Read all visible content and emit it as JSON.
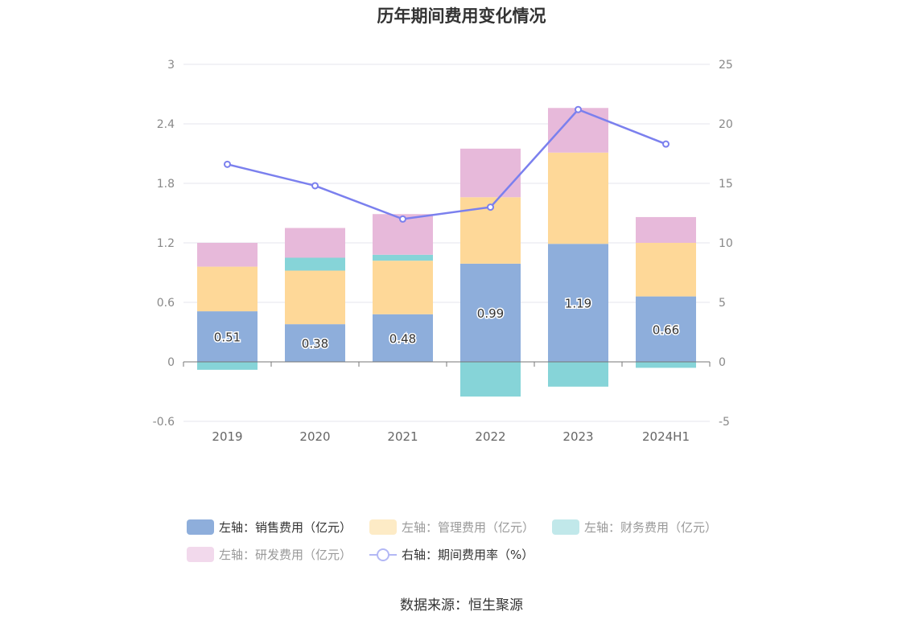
{
  "title": "历年期间费用变化情况",
  "source": "数据来源：恒生聚源",
  "legend": [
    {
      "label": "左轴：销售费用（亿元）",
      "color": "#8eaedb",
      "dim": false
    },
    {
      "label": "左轴：管理费用（亿元）",
      "color": "#fdebc6",
      "dim": true
    },
    {
      "label": "左轴：财务费用（亿元）",
      "color": "#c1e8ea",
      "dim": true
    },
    {
      "label": "左轴：研发费用（亿元）",
      "color": "#f2d9ec",
      "dim": true
    },
    {
      "label": "右轴：期间费用率（%）",
      "color": "#b3b8f5",
      "dim": false
    }
  ],
  "chart_data": {
    "type": "bar",
    "stacked": true,
    "categories": [
      "2019",
      "2020",
      "2021",
      "2022",
      "2023",
      "2024H1"
    ],
    "series": [
      {
        "name": "左轴：销售费用（亿元）",
        "axis": "left",
        "color": "#8eaedb",
        "values": [
          0.51,
          0.38,
          0.48,
          0.99,
          1.19,
          0.66
        ],
        "labels": [
          "0.51",
          "0.38",
          "0.48",
          "0.99",
          "1.19",
          "0.66"
        ]
      },
      {
        "name": "左轴：管理费用（亿元）",
        "axis": "left",
        "color": "#fed898",
        "values": [
          0.45,
          0.54,
          0.54,
          0.67,
          0.92,
          0.54
        ]
      },
      {
        "name": "左轴：财务费用（亿元）",
        "axis": "left",
        "color": "#86d4d8",
        "values": [
          -0.08,
          0.13,
          0.06,
          -0.35,
          -0.25,
          -0.06
        ]
      },
      {
        "name": "左轴：研发费用（亿元）",
        "axis": "left",
        "color": "#e7b9da",
        "values": [
          0.24,
          0.3,
          0.41,
          0.49,
          0.45,
          0.26
        ]
      },
      {
        "name": "右轴：期间费用率（%）",
        "axis": "right",
        "type": "line",
        "color": "#7b80ee",
        "values": [
          16.6,
          14.8,
          12.0,
          13.0,
          21.2,
          18.3
        ]
      }
    ],
    "y_left": {
      "min": -0.6,
      "max": 3,
      "ticks": [
        "-0.6",
        "0",
        "0.6",
        "1.2",
        "1.8",
        "2.4",
        "3"
      ]
    },
    "y_right": {
      "min": -5,
      "max": 25,
      "ticks": [
        "-5",
        "0",
        "5",
        "10",
        "15",
        "20",
        "25"
      ]
    },
    "grid": true,
    "legend_position": "bottom"
  }
}
